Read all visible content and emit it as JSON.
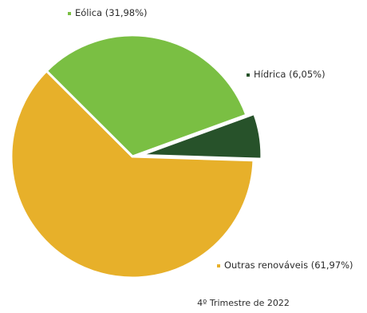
{
  "chart_data": {
    "type": "pie",
    "slices": [
      {
        "label": "Eólica (31,98%)",
        "value": 31.98,
        "color": "#7abf43"
      },
      {
        "label": "Hídrica (6,05%)",
        "value": 6.05,
        "color": "#27522a"
      },
      {
        "label": "Outras renováveis (61,97%)",
        "value": 61.97,
        "color": "#e7b02a"
      }
    ],
    "caption": "4º Trimestre de 2022"
  }
}
